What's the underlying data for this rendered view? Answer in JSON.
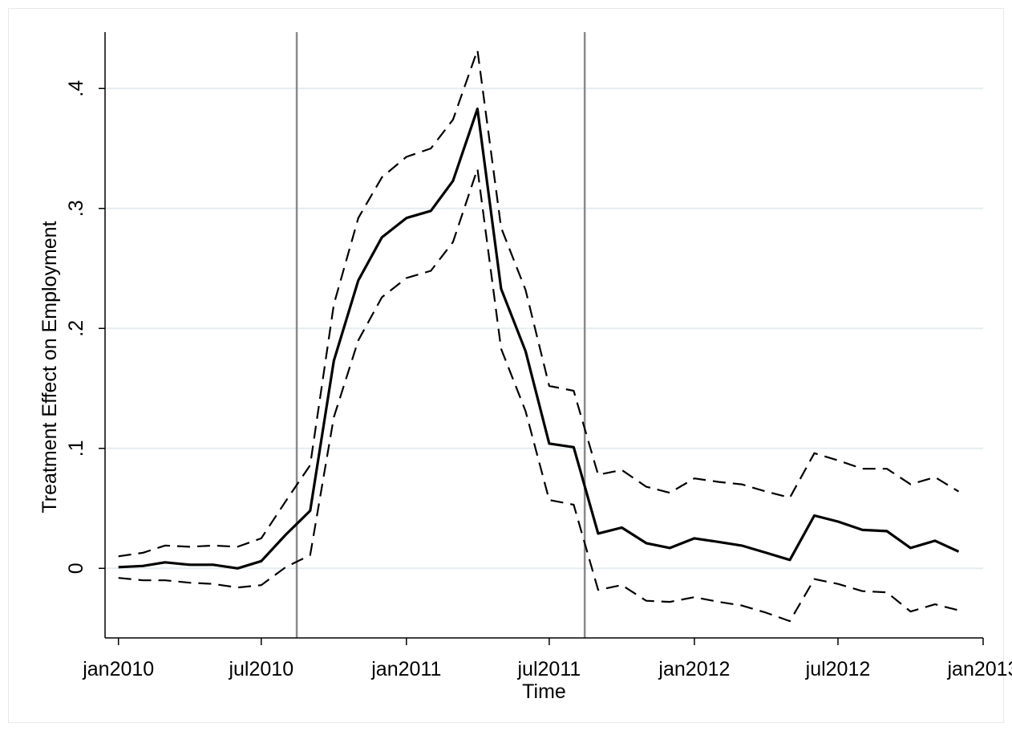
{
  "chart_data": {
    "type": "line",
    "xlabel": "Time",
    "ylabel": "Treatment Effect on Employment",
    "xlim": [
      "2009-12-15",
      "2013-01-01"
    ],
    "ylim": [
      -0.058,
      0.447
    ],
    "x_ticks": [
      {
        "date": "2010-01-01",
        "label": "jan2010"
      },
      {
        "date": "2010-07-01",
        "label": "jul2010"
      },
      {
        "date": "2011-01-01",
        "label": "jan2011"
      },
      {
        "date": "2011-07-01",
        "label": "jul2011"
      },
      {
        "date": "2012-01-01",
        "label": "jan2012"
      },
      {
        "date": "2012-07-01",
        "label": "jul2012"
      },
      {
        "date": "2013-01-01",
        "label": "jan2013"
      }
    ],
    "y_ticks": [
      {
        "value": 0,
        "label": "0"
      },
      {
        "value": 0.1,
        "label": ".1"
      },
      {
        "value": 0.2,
        "label": ".2"
      },
      {
        "value": 0.3,
        "label": ".3"
      },
      {
        "value": 0.4,
        "label": ".4"
      }
    ],
    "grid": "horizontal",
    "vertical_lines": [
      "2010-08-15",
      "2011-08-15"
    ],
    "x": [
      "2010-01-01",
      "2010-02-01",
      "2010-03-01",
      "2010-04-01",
      "2010-05-01",
      "2010-06-01",
      "2010-07-01",
      "2010-08-01",
      "2010-09-01",
      "2010-10-01",
      "2010-11-01",
      "2010-12-01",
      "2011-01-01",
      "2011-02-01",
      "2011-03-01",
      "2011-04-01",
      "2011-05-01",
      "2011-06-01",
      "2011-07-01",
      "2011-08-01",
      "2011-09-01",
      "2011-10-01",
      "2011-11-01",
      "2011-12-01",
      "2012-01-01",
      "2012-02-01",
      "2012-03-01",
      "2012-04-01",
      "2012-05-01",
      "2012-06-01",
      "2012-07-01",
      "2012-08-01",
      "2012-09-01",
      "2012-10-01",
      "2012-11-01",
      "2012-12-01"
    ],
    "series": [
      {
        "style": "solid",
        "color": "#000000",
        "values": [
          0.001,
          0.002,
          0.005,
          0.003,
          0.003,
          0.0,
          0.006,
          0.028,
          0.048,
          0.173,
          0.24,
          0.276,
          0.292,
          0.298,
          0.323,
          0.383,
          0.233,
          0.181,
          0.104,
          0.101,
          0.029,
          0.034,
          0.021,
          0.017,
          0.025,
          0.022,
          0.019,
          0.013,
          0.007,
          0.044,
          0.039,
          0.032,
          0.031,
          0.017,
          0.023,
          0.014
        ]
      },
      {
        "style": "dashed",
        "color": "#000000",
        "values": [
          0.01,
          0.013,
          0.019,
          0.018,
          0.019,
          0.018,
          0.025,
          0.056,
          0.086,
          0.22,
          0.292,
          0.326,
          0.343,
          0.35,
          0.374,
          0.432,
          0.284,
          0.232,
          0.152,
          0.148,
          0.078,
          0.082,
          0.068,
          0.063,
          0.075,
          0.072,
          0.07,
          0.064,
          0.059,
          0.096,
          0.09,
          0.083,
          0.083,
          0.07,
          0.076,
          0.064
        ]
      },
      {
        "style": "dashed",
        "color": "#000000",
        "values": [
          -0.008,
          -0.01,
          -0.01,
          -0.012,
          -0.013,
          -0.016,
          -0.014,
          0.001,
          0.011,
          0.126,
          0.19,
          0.226,
          0.242,
          0.248,
          0.272,
          0.333,
          0.183,
          0.131,
          0.057,
          0.053,
          -0.018,
          -0.014,
          -0.027,
          -0.028,
          -0.024,
          -0.028,
          -0.031,
          -0.037,
          -0.044,
          -0.009,
          -0.013,
          -0.019,
          -0.02,
          -0.036,
          -0.03,
          -0.035
        ]
      }
    ]
  }
}
